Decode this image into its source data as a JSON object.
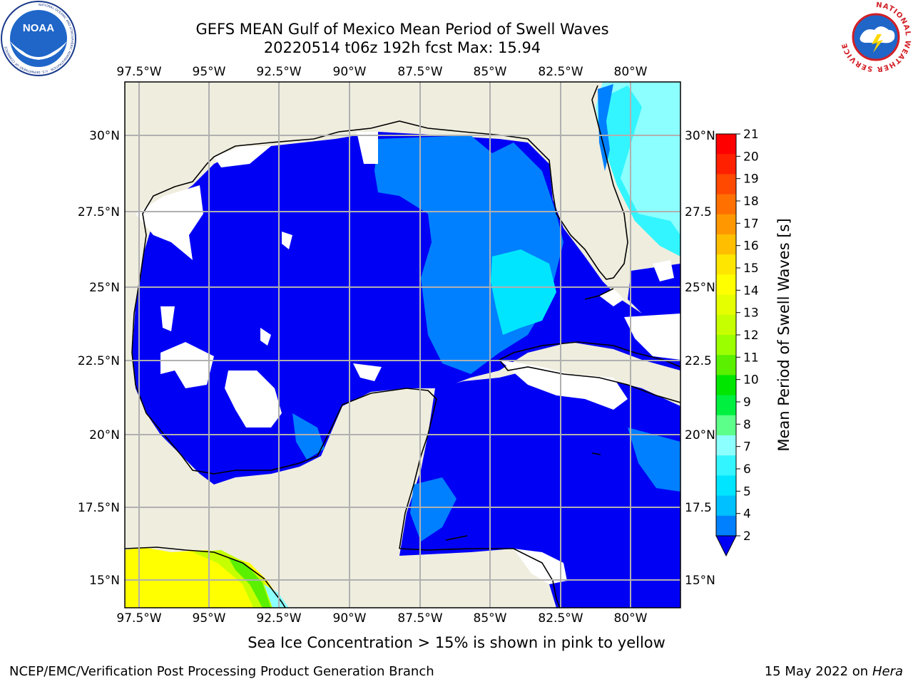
{
  "header": {
    "title_line1": "GEFS MEAN Gulf of Mexico Mean Period of Swell Waves",
    "title_line2": "20220514 t06z 192h fcst   Max: 15.94"
  },
  "logos": {
    "left": {
      "name": "noaa-logo",
      "text": "NOAA",
      "ring_text": "NATIONAL OCEANIC AND ATMOSPHERIC ADMINISTRATION · U.S. DEPARTMENT OF COMMERCE"
    },
    "right": {
      "name": "nws-logo",
      "ring_text": "NATIONAL WEATHER SERVICE"
    }
  },
  "map": {
    "lon_labels": [
      "97.5°W",
      "95°W",
      "92.5°W",
      "90°W",
      "87.5°W",
      "85°W",
      "82.5°W",
      "80°W"
    ],
    "lat_labels_left": [
      "30°N",
      "27.5°N",
      "25°N",
      "22.5°N",
      "20°N",
      "17.5°N",
      "15°N"
    ],
    "lat_labels_right": [
      "30°N",
      "27.5",
      "25°N",
      "22.5",
      "20°N",
      "17.5",
      "15°N"
    ],
    "colors": {
      "land": "#efedde",
      "ocean_low": "#0000f5",
      "ocean_2_4": "#0080ff",
      "ocean_4_6": "#00e5ff",
      "ocean_6_8": "#33f5ff",
      "ocean_8_9": "#8cffff",
      "missing": "#ffffff",
      "grid": "#b0b0b0"
    }
  },
  "colorbar": {
    "label": "Mean Period of Swell Waves [s]",
    "ticks": [
      "21",
      "20",
      "19",
      "18",
      "17",
      "16",
      "15",
      "14",
      "13",
      "12",
      "11",
      "10",
      "9",
      "8",
      "7",
      "6",
      "5",
      "4",
      "2"
    ],
    "colors_top_to_bottom": [
      "#ff0000",
      "#ff2000",
      "#ff4800",
      "#ff7000",
      "#ff9800",
      "#ffbf00",
      "#ffe600",
      "#ffff00",
      "#e6ff00",
      "#c6ff00",
      "#9cff00",
      "#5af000",
      "#00e600",
      "#00f040",
      "#5cff8a",
      "#8cffff",
      "#33f5ff",
      "#00e5ff",
      "#00c0ff",
      "#0080ff"
    ],
    "extend_color": "#0000f5"
  },
  "footer": {
    "ice_note": "Sea Ice Concentration > 15% is shown in pink to yellow",
    "left": "NCEP/EMC/Verification Post Processing Product Generation Branch",
    "right_date": "15 May 2022 on",
    "right_system": "Hera"
  }
}
